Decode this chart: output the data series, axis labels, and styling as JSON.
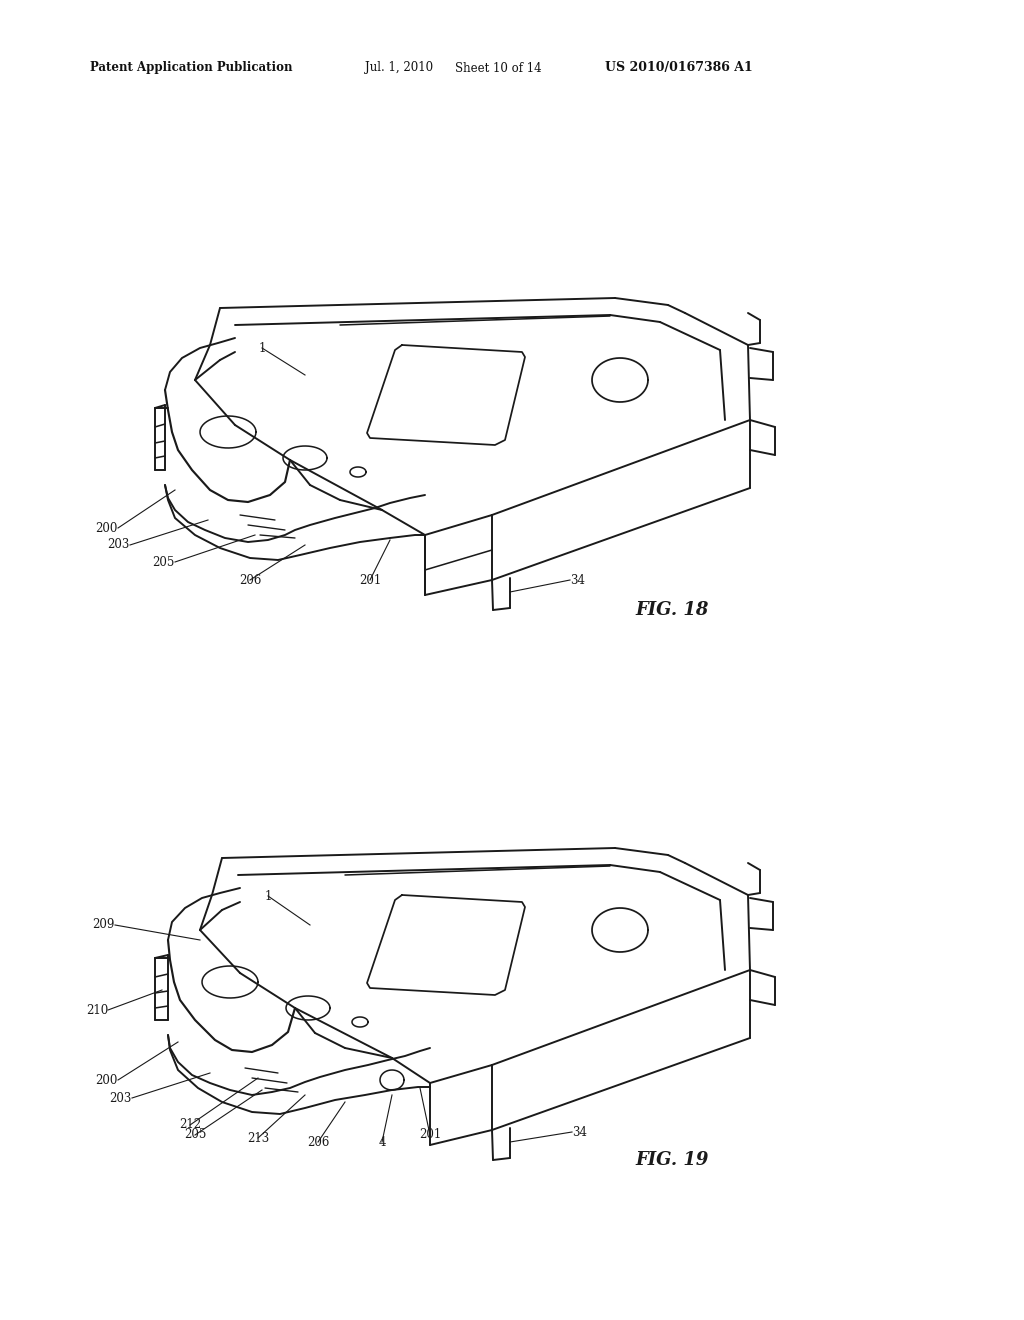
{
  "background_color": "#ffffff",
  "page_width": 10.24,
  "page_height": 13.2,
  "header_text": "Patent Application Publication",
  "header_date": "Jul. 1, 2010",
  "header_sheet": "Sheet 10 of 14",
  "header_patent": "US 2010/0167386 A1",
  "line_color": "#1a1a1a",
  "line_width": 1.4,
  "fig18_label": "FIG. 18",
  "fig19_label": "FIG. 19"
}
